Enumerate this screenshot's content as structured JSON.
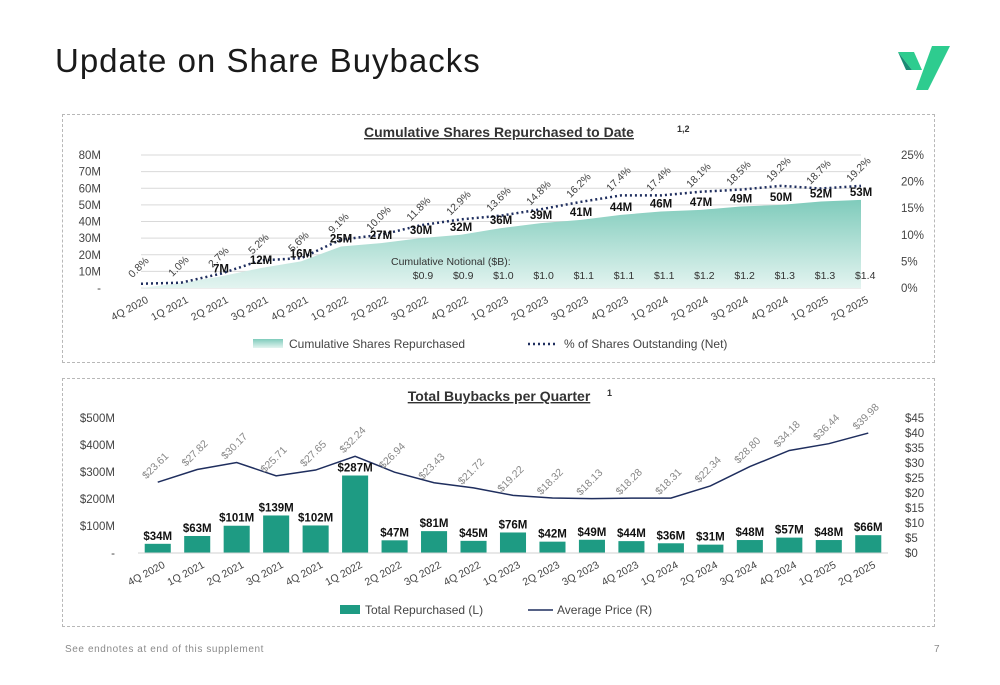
{
  "page": {
    "title": "Update on Share Buybacks",
    "footnote": "See endnotes at end of this supplement",
    "page_number": "7"
  },
  "colors": {
    "teal": "#1e9b83",
    "teal_light": "#cfeae4",
    "navy": "#1f2e5e",
    "green_logo": "#2ecc8f"
  },
  "chart_data": [
    {
      "type": "area",
      "title": "Cumulative Shares Repurchased to Date",
      "title_sup": "1,2",
      "categories": [
        "4Q 2020",
        "1Q 2021",
        "2Q 2021",
        "3Q 2021",
        "4Q 2021",
        "1Q 2022",
        "2Q 2022",
        "3Q 2022",
        "4Q 2022",
        "1Q 2023",
        "2Q 2023",
        "3Q 2023",
        "4Q 2023",
        "1Q 2024",
        "2Q 2024",
        "3Q 2024",
        "4Q 2024",
        "1Q 2025",
        "2Q 2025"
      ],
      "series": [
        {
          "name": "Cumulative Shares Repurchased",
          "axis": "left",
          "values": [
            0,
            3,
            7,
            12,
            16,
            25,
            27,
            30,
            32,
            36,
            39,
            41,
            44,
            46,
            47,
            49,
            50,
            52,
            53
          ],
          "labels": [
            "",
            "",
            "7M",
            "12M",
            "16M",
            "25M",
            "27M",
            "30M",
            "32M",
            "36M",
            "39M",
            "41M",
            "44M",
            "46M",
            "47M",
            "49M",
            "50M",
            "52M",
            "53M"
          ]
        },
        {
          "name": "% of Shares Outstanding (Net)",
          "axis": "right",
          "values": [
            0.8,
            1.0,
            2.7,
            5.2,
            5.6,
            9.1,
            10.0,
            11.8,
            12.9,
            13.6,
            14.8,
            16.2,
            17.4,
            17.4,
            18.1,
            18.5,
            19.2,
            18.7,
            19.2
          ],
          "labels": [
            "0.8%",
            "1.0%",
            "2.7%",
            "5.2%",
            "5.6%",
            "9.1%",
            "10.0%",
            "11.8%",
            "12.9%",
            "13.6%",
            "14.8%",
            "16.2%",
            "17.4%",
            "17.4%",
            "18.1%",
            "18.5%",
            "19.2%",
            "18.7%",
            "19.2%"
          ]
        }
      ],
      "y_left": {
        "ticks": [
          "-",
          "10M",
          "20M",
          "30M",
          "40M",
          "50M",
          "60M",
          "70M",
          "80M"
        ],
        "ylim": [
          0,
          80
        ]
      },
      "y_right": {
        "ticks": [
          "0%",
          "5%",
          "10%",
          "15%",
          "20%",
          "25%"
        ],
        "ylim": [
          0,
          25
        ]
      },
      "notional_label": "Cumulative  Notional  ($B):",
      "notional_values": [
        "$0.9",
        "$0.9",
        "$1.0",
        "$1.0",
        "$1.1",
        "$1.1",
        "$1.1",
        "$1.2",
        "$1.2",
        "$1.3",
        "$1.3",
        "$1.4"
      ],
      "legend": [
        "Cumulative Shares Repurchased",
        "% of Shares Outstanding (Net)"
      ],
      "legend_position": "bottom",
      "grid": true
    },
    {
      "type": "bar",
      "title": "Total Buybacks per Quarter",
      "title_sup": "1",
      "categories": [
        "4Q 2020",
        "1Q 2021",
        "2Q 2021",
        "3Q 2021",
        "4Q 2021",
        "1Q 2022",
        "2Q 2022",
        "3Q 2022",
        "4Q 2022",
        "1Q 2023",
        "2Q 2023",
        "3Q 2023",
        "4Q 2023",
        "1Q 2024",
        "2Q 2024",
        "3Q 2024",
        "4Q 2024",
        "1Q 2025",
        "2Q 2025"
      ],
      "series": [
        {
          "name": "Total Repurchased (L)",
          "axis": "left",
          "values": [
            34,
            63,
            101,
            139,
            102,
            287,
            47,
            81,
            45,
            76,
            42,
            49,
            44,
            36,
            31,
            48,
            57,
            48,
            66
          ],
          "labels": [
            "$34M",
            "$63M",
            "$101M",
            "$139M",
            "$102M",
            "$287M",
            "$47M",
            "$81M",
            "$45M",
            "$76M",
            "$42M",
            "$49M",
            "$44M",
            "$36M",
            "$31M",
            "$48M",
            "$57M",
            "$48M",
            "$66M"
          ]
        },
        {
          "name": "Average Price (R)",
          "axis": "right",
          "values": [
            23.61,
            27.82,
            30.17,
            25.71,
            27.65,
            32.24,
            26.94,
            23.43,
            21.72,
            19.22,
            18.32,
            18.13,
            18.28,
            18.31,
            22.34,
            28.8,
            34.18,
            36.44,
            39.98
          ],
          "labels": [
            "$23.61",
            "$27.82",
            "$30.17",
            "$25.71",
            "$27.65",
            "$32.24",
            "$26.94",
            "$23.43",
            "$21.72",
            "$19.22",
            "$18.32",
            "$18.13",
            "$18.28",
            "$18.31",
            "$22.34",
            "$28.80",
            "$34.18",
            "$36.44",
            "$39.98"
          ]
        }
      ],
      "y_left": {
        "ticks": [
          "-",
          "$100M",
          "$200M",
          "$300M",
          "$400M",
          "$500M"
        ],
        "ylim": [
          0,
          500
        ]
      },
      "y_right": {
        "ticks": [
          "$0",
          "$5",
          "$10",
          "$15",
          "$20",
          "$25",
          "$30",
          "$35",
          "$40",
          "$45"
        ],
        "ylim": [
          0,
          45
        ]
      },
      "legend": [
        "Total Repurchased (L)",
        "Average Price (R)"
      ],
      "legend_position": "bottom",
      "grid": false
    }
  ]
}
